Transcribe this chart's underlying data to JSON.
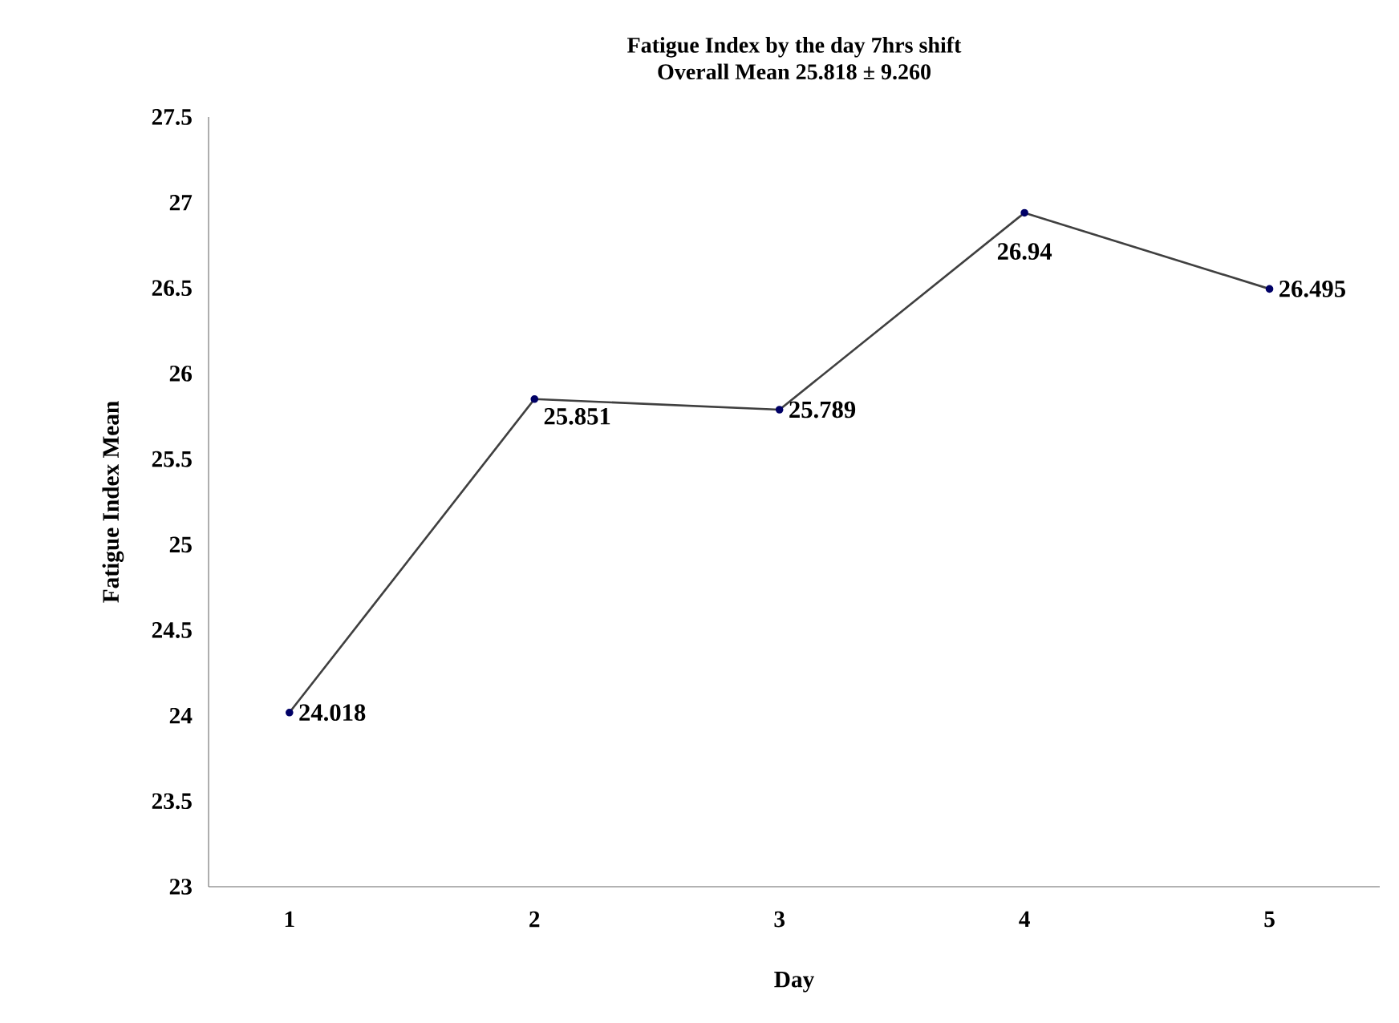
{
  "chart_data": {
    "type": "line",
    "title": "Fatigue Index by the day 7hrs shift",
    "subtitle": "Overall Mean 25.818 ± 9.260",
    "xlabel": "Day",
    "ylabel": "Fatigue Index Mean",
    "categories": [
      "1",
      "2",
      "3",
      "4",
      "5"
    ],
    "series": [
      {
        "color": "#404040",
        "values": [
          24.018,
          25.851,
          25.789,
          26.94,
          26.495
        ],
        "value_labels": [
          "24.018",
          "25.851",
          "25.789",
          "26.94",
          "26.495"
        ]
      }
    ],
    "ylim": [
      23,
      27.5
    ],
    "yticks": [
      23,
      {
        "value": 23.5,
        "label": "23.5"
      },
      24,
      {
        "value": 24.5,
        "label": "24.5"
      },
      25,
      {
        "value": 25.5,
        "label": "25.5"
      },
      26,
      {
        "value": 26.5,
        "label": "26.5"
      },
      27,
      {
        "value": 27.5,
        "label": "27.5"
      }
    ],
    "grid": false,
    "marker": "circle",
    "line_style": "solid"
  }
}
